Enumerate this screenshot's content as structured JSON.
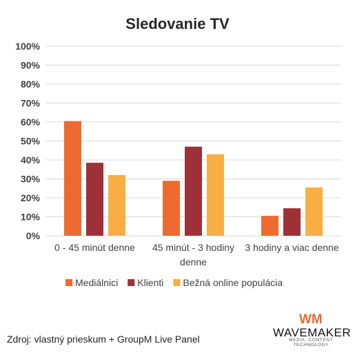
{
  "chart_data": {
    "type": "bar",
    "title": "Sledovanie TV",
    "categories": [
      "0 - 45 minút denne",
      "45 minút - 3 hodiny denne",
      "3 hodiny a viac denne"
    ],
    "category_lines": [
      [
        "0 - 45 minút denne"
      ],
      [
        "45 minút - 3 hodiny",
        "denne"
      ],
      [
        "3 hodiny a viac denne"
      ]
    ],
    "series": [
      {
        "name": "Mediálnici",
        "color": "#ED6B30",
        "values": [
          0.605,
          0.29,
          0.105
        ]
      },
      {
        "name": "Klienti",
        "color": "#9E3038",
        "values": [
          0.385,
          0.47,
          0.145
        ]
      },
      {
        "name": "Bežná online populácia",
        "color": "#F8AE42",
        "values": [
          0.32,
          0.43,
          0.255
        ]
      }
    ],
    "y_ticks": [
      "0%",
      "10%",
      "20%",
      "30%",
      "40%",
      "50%",
      "60%",
      "70%",
      "80%",
      "90%",
      "100%"
    ],
    "ylim": [
      0,
      1
    ],
    "grid": true,
    "legend_position": "bottom"
  },
  "source_text": "Zdroj: vlastný prieskum + GroupM Live Panel",
  "logo": {
    "mark": "WM",
    "name": "WAVEMAKER",
    "tagline": "MEDIA. CONTENT. TECHNOLOGY."
  },
  "colors": {
    "grid": "#D9D9D9",
    "axis_text": "#404040"
  }
}
